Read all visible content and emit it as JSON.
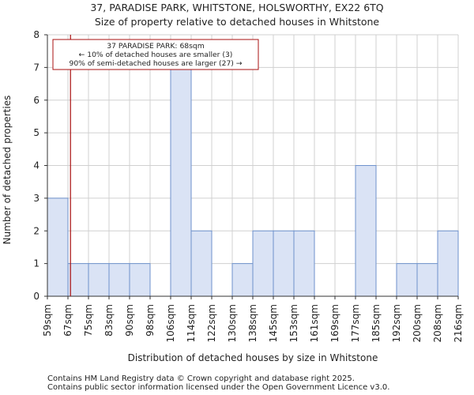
{
  "chart_data": {
    "type": "histogram",
    "title": "37, PARADISE PARK, WHITSTONE, HOLSWORTHY, EX22 6TQ",
    "subtitle": "Size of property relative to detached houses in Whitstone",
    "xlabel": "Distribution of detached houses by size in Whitstone",
    "ylabel": "Number of detached properties",
    "categories": [
      "59sqm",
      "67sqm",
      "75sqm",
      "83sqm",
      "90sqm",
      "98sqm",
      "106sqm",
      "114sqm",
      "122sqm",
      "130sqm",
      "138sqm",
      "145sqm",
      "153sqm",
      "161sqm",
      "169sqm",
      "177sqm",
      "185sqm",
      "192sqm",
      "200sqm",
      "208sqm",
      "216sqm"
    ],
    "values": [
      3,
      1,
      1,
      1,
      1,
      0,
      7,
      2,
      0,
      1,
      2,
      2,
      2,
      0,
      0,
      4,
      0,
      1,
      1,
      2
    ],
    "ylim": [
      0,
      8
    ],
    "yticks": [
      0,
      1,
      2,
      3,
      4,
      5,
      6,
      7,
      8
    ],
    "grid": true,
    "bar_color": "#dae3f5",
    "bar_edge_color": "#6f92cc",
    "marker": {
      "value": 68,
      "label": "37 PARADISE PARK: 68sqm",
      "color": "#aa1111"
    },
    "annotation": {
      "lines": [
        "37 PARADISE PARK: 68sqm",
        "← 10% of detached houses are smaller (3)",
        "90% of semi-detached houses are larger (27) →"
      ],
      "border_color": "#aa1111"
    }
  },
  "footer": {
    "line1": "Contains HM Land Registry data © Crown copyright and database right 2025.",
    "line2": "Contains public sector information licensed under the Open Government Licence v3.0."
  }
}
